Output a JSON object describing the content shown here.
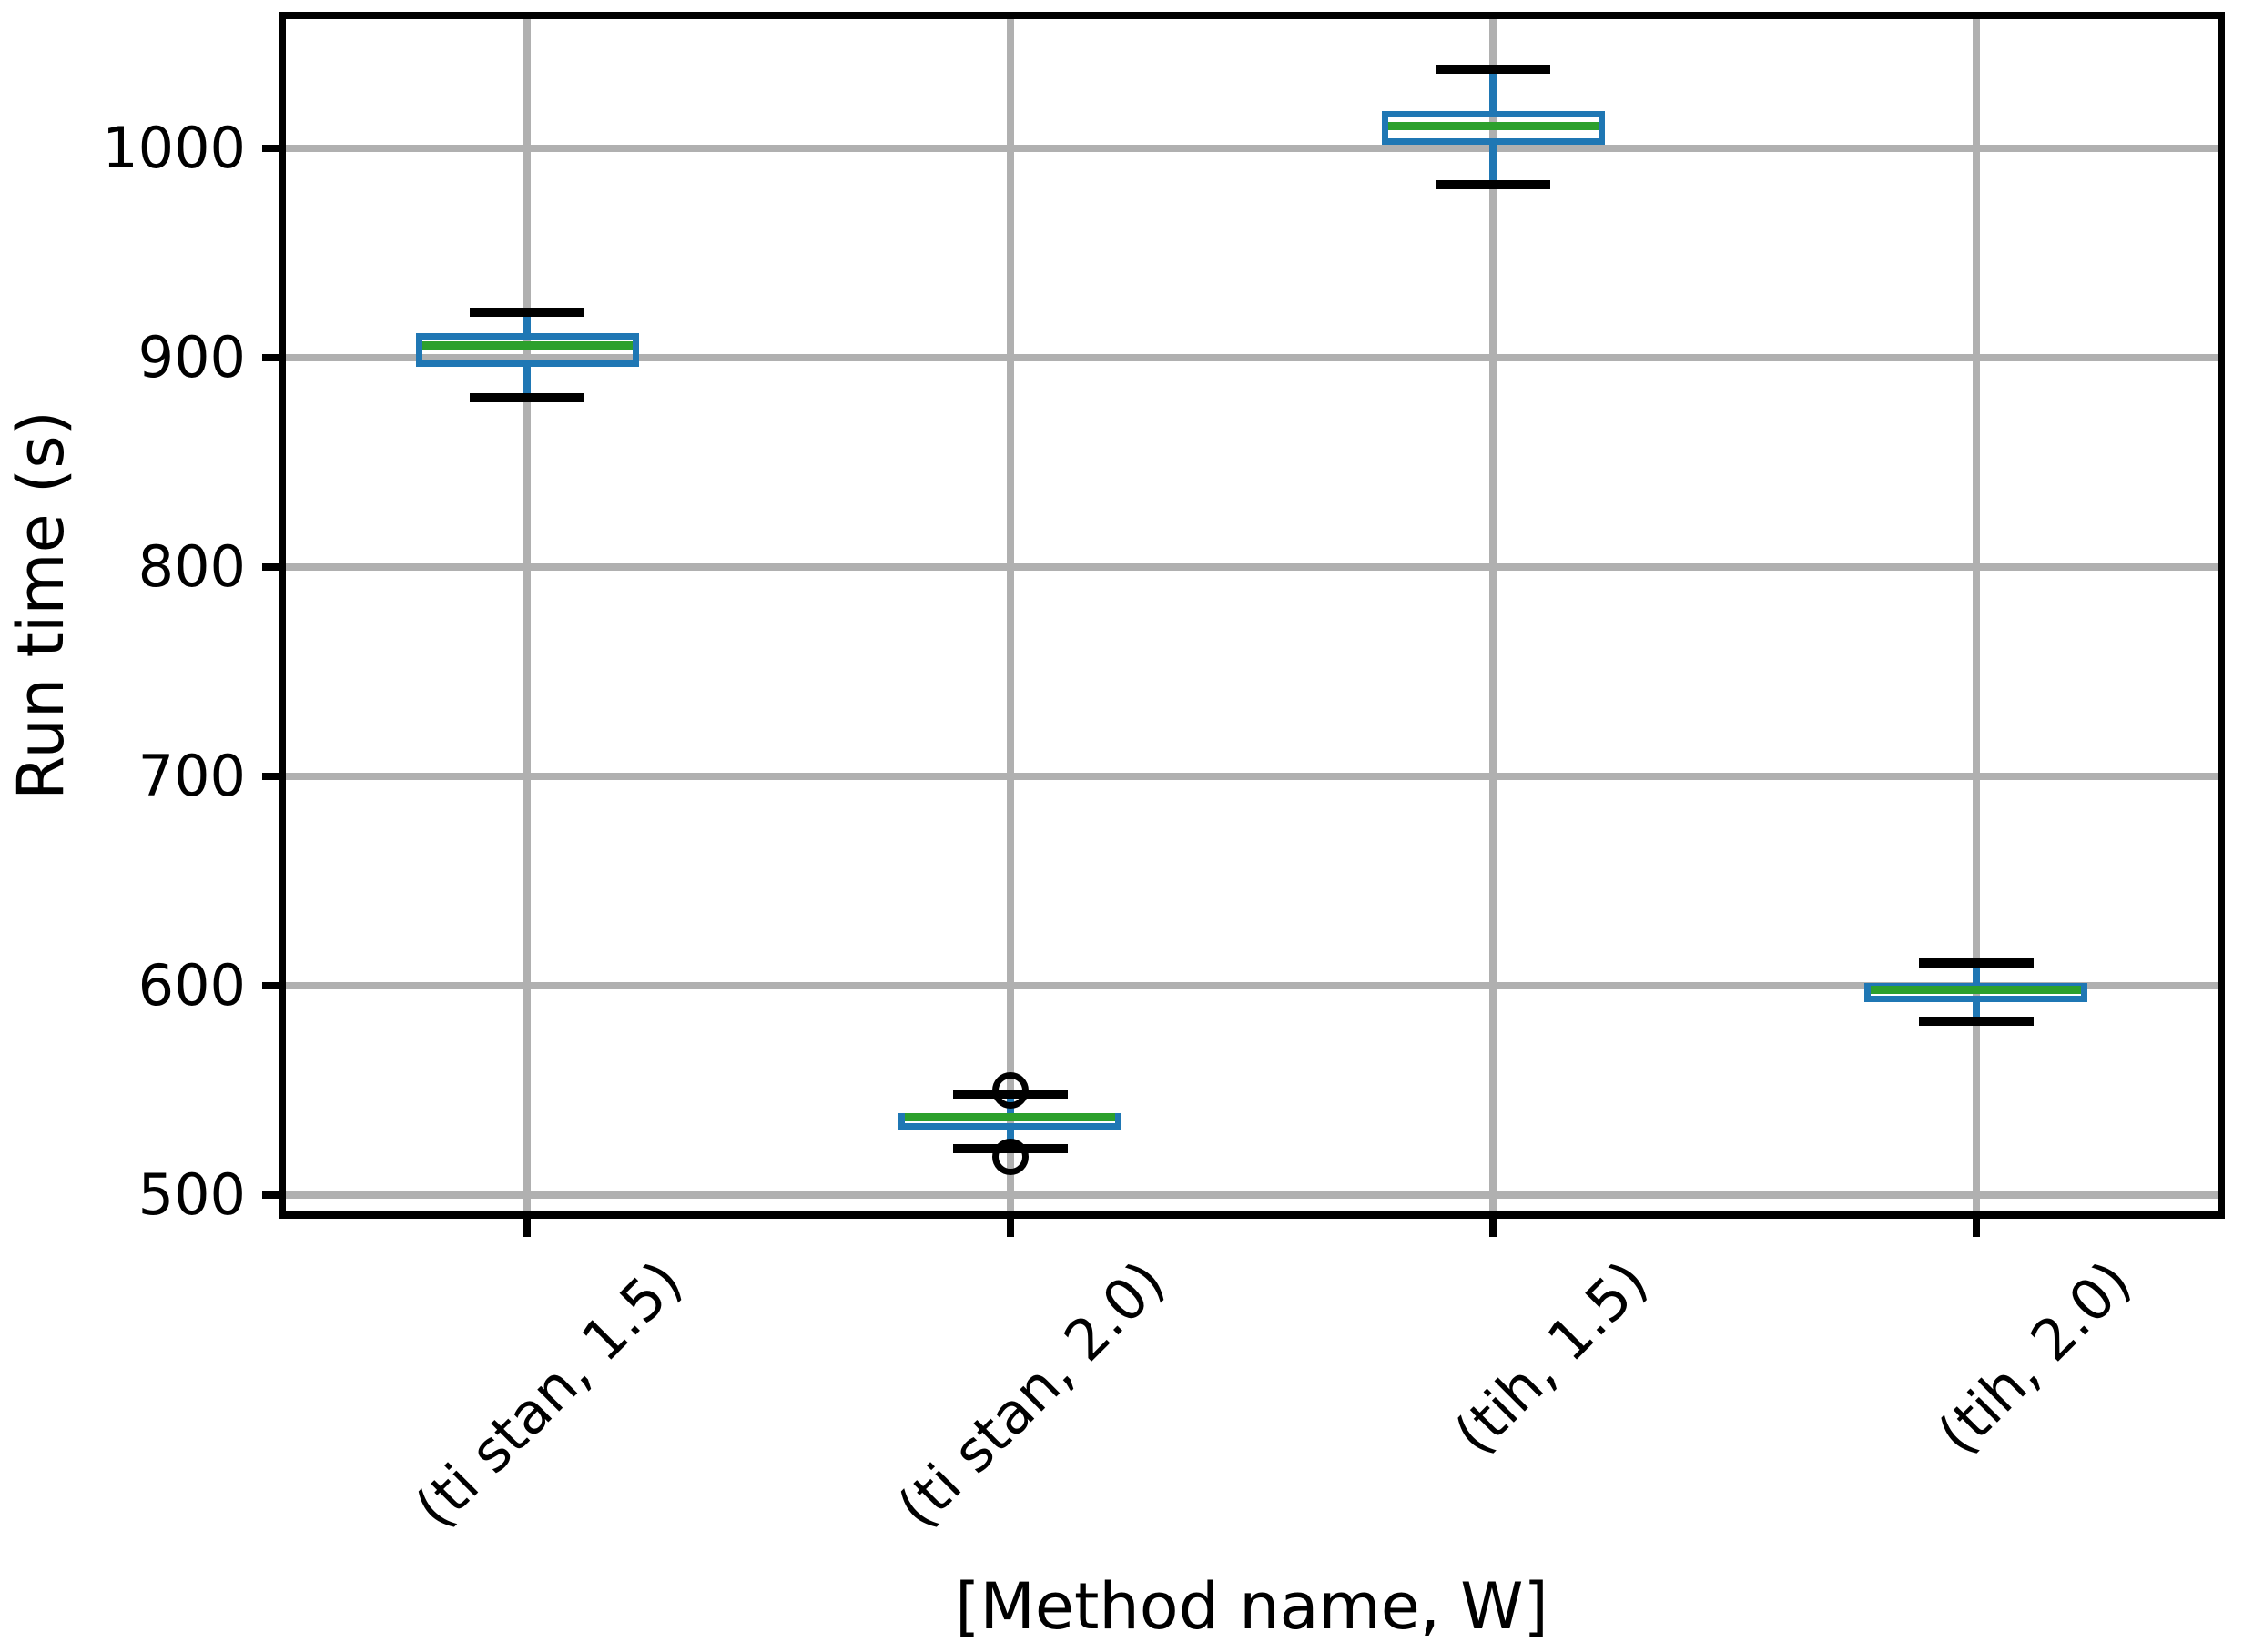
{
  "figure": {
    "background": "#ffffff"
  },
  "chart_data": {
    "type": "boxplot",
    "title": "",
    "xlabel": "[Method name, W]",
    "ylabel": "Run time (s)",
    "categories": [
      "(ti stan, 1.5)",
      "(ti stan, 2.0)",
      "(tih, 1.5)",
      "(tih, 2.0)"
    ],
    "yticks": [
      500,
      600,
      700,
      800,
      900,
      1000
    ],
    "ylim": [
      492,
      1062
    ],
    "grid": true,
    "legend": false,
    "series": [
      {
        "label": "(ti stan, 1.5)",
        "whisker_low": 881,
        "q1": 896,
        "median": 906,
        "q3": 912,
        "whisker_high": 922,
        "fliers": []
      },
      {
        "label": "(ti stan, 2.0)",
        "whisker_low": 522,
        "q1": 531,
        "median": 537,
        "q3": 539,
        "whisker_high": 548,
        "fliers": [
          550,
          518
        ]
      },
      {
        "label": "(tih, 1.5)",
        "whisker_low": 983,
        "q1": 1002,
        "median": 1011,
        "q3": 1018,
        "whisker_high": 1038,
        "fliers": []
      },
      {
        "label": "(tih, 2.0)",
        "whisker_low": 583,
        "q1": 592,
        "median": 598,
        "q3": 601,
        "whisker_high": 611,
        "fliers": []
      }
    ],
    "colors": {
      "box": "#1f77b4",
      "median": "#2ca02c",
      "whisker": "#1f77b4",
      "cap": "#000000",
      "flier": "#000000",
      "grid": "#b0b0b0",
      "spine": "#000000",
      "text": "#000000"
    }
  }
}
